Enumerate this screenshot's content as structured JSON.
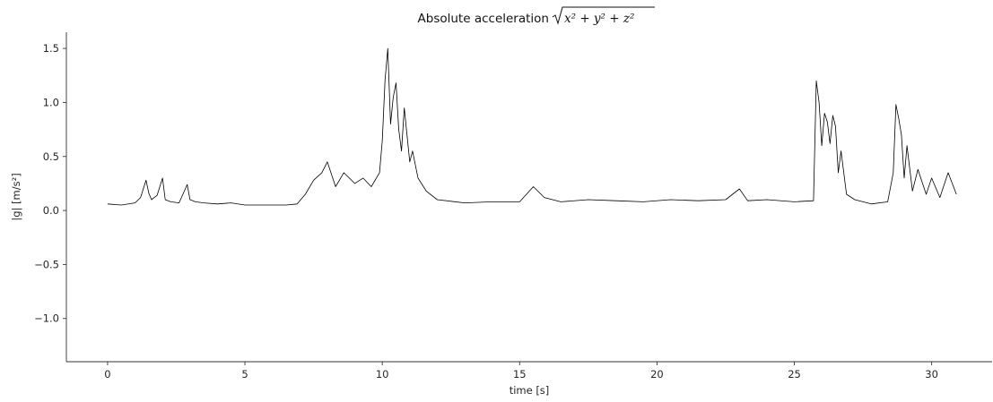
{
  "chart_data": {
    "type": "line",
    "title": "Absolute acceleration",
    "title_math": "x² + y² + z²",
    "xlabel": "time [s]",
    "ylabel": "|g| [m/s²]",
    "xlim": [
      -1.5,
      32.2
    ],
    "ylim": [
      -1.4,
      1.65
    ],
    "xticks": [
      0,
      5,
      10,
      15,
      20,
      25,
      30
    ],
    "xtick_labels": [
      "0",
      "5",
      "10",
      "15",
      "20",
      "25",
      "30"
    ],
    "yticks": [
      -1.0,
      -0.5,
      0.0,
      0.5,
      1.0,
      1.5
    ],
    "ytick_labels": [
      "−1.0",
      "−0.5",
      "0.0",
      "0.5",
      "1.0",
      "1.5"
    ],
    "grid": false,
    "spines": [
      "left",
      "bottom"
    ],
    "series": [
      {
        "color": "#000000",
        "x": [
          0,
          0.5,
          1.0,
          1.2,
          1.4,
          1.5,
          1.6,
          1.8,
          2.0,
          2.1,
          2.3,
          2.6,
          2.9,
          3.0,
          3.2,
          3.5,
          4.0,
          4.5,
          5.0,
          5.5,
          6.0,
          6.5,
          6.9,
          7.2,
          7.5,
          7.8,
          8.0,
          8.3,
          8.6,
          9.0,
          9.3,
          9.6,
          9.9,
          10.0,
          10.1,
          10.2,
          10.3,
          10.4,
          10.5,
          10.6,
          10.7,
          10.8,
          10.9,
          11.0,
          11.1,
          11.3,
          11.6,
          12.0,
          13.0,
          14.0,
          15.0,
          15.5,
          15.9,
          16.5,
          17.5,
          18.5,
          19.5,
          20.5,
          21.5,
          22.5,
          23.0,
          23.3,
          24.0,
          25.0,
          25.7,
          25.8,
          25.9,
          26.0,
          26.1,
          26.2,
          26.3,
          26.4,
          26.5,
          26.6,
          26.7,
          26.9,
          27.2,
          27.8,
          28.4,
          28.6,
          28.7,
          28.8,
          28.9,
          29.0,
          29.1,
          29.3,
          29.5,
          29.8,
          30.0,
          30.3,
          30.6,
          30.9
        ],
        "y": [
          0.06,
          0.05,
          0.07,
          0.12,
          0.28,
          0.16,
          0.1,
          0.14,
          0.3,
          0.1,
          0.08,
          0.07,
          0.24,
          0.1,
          0.08,
          0.07,
          0.06,
          0.07,
          0.05,
          0.05,
          0.05,
          0.05,
          0.06,
          0.15,
          0.28,
          0.35,
          0.45,
          0.22,
          0.35,
          0.25,
          0.3,
          0.22,
          0.35,
          0.65,
          1.2,
          1.5,
          0.8,
          1.05,
          1.18,
          0.75,
          0.55,
          0.95,
          0.7,
          0.45,
          0.55,
          0.3,
          0.18,
          0.1,
          0.07,
          0.08,
          0.08,
          0.22,
          0.12,
          0.08,
          0.1,
          0.09,
          0.08,
          0.1,
          0.09,
          0.1,
          0.2,
          0.09,
          0.1,
          0.08,
          0.09,
          1.2,
          1.0,
          0.6,
          0.9,
          0.82,
          0.62,
          0.88,
          0.78,
          0.35,
          0.55,
          0.15,
          0.1,
          0.06,
          0.08,
          0.35,
          0.98,
          0.85,
          0.7,
          0.3,
          0.6,
          0.18,
          0.38,
          0.15,
          0.3,
          0.12,
          0.35,
          0.15
        ]
      }
    ]
  }
}
